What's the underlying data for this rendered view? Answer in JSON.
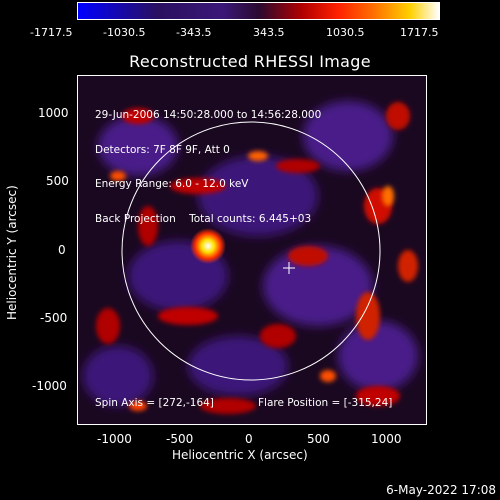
{
  "colorbar": {
    "ticks": [
      "-1717.5",
      "-1030.5",
      "-343.5",
      "343.5",
      "1030.5",
      "1717.5"
    ]
  },
  "title": "Reconstructed RHESSI Image",
  "info": {
    "line1": "29-Jun-2006 14:50:28.000 to 14:56:28.000",
    "line2": "Detectors: 7F 8F 9F, Att 0",
    "line3": "Energy Range: 6.0 - 12.0 keV",
    "line4": "Back Projection    Total counts: 6.445+03"
  },
  "footer": {
    "spin_axis": "Spin Axis = [272,-164]",
    "flare_position": "Flare Position = [-315,24]"
  },
  "axes": {
    "xlabel": "Heliocentric X (arcsec)",
    "ylabel": "Heliocentric Y (arcsec)",
    "xticks": [
      "-1000",
      "-500",
      "0",
      "500",
      "1000"
    ],
    "yticks": [
      "1000",
      "500",
      "0",
      "-500",
      "-1000"
    ]
  },
  "timestamp": "6-May-2022 17:08"
}
